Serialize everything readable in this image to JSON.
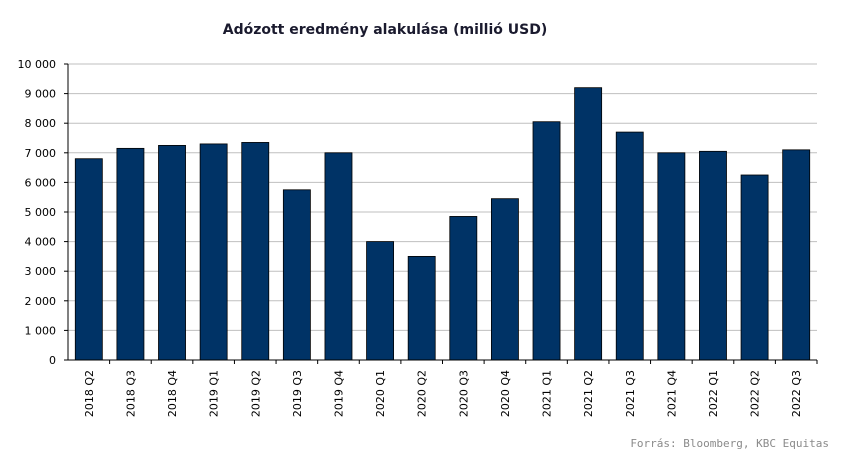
{
  "chart_data": {
    "type": "bar",
    "title": "Adózott eredmény alakulása (millió USD)",
    "categories": [
      "2018 Q2",
      "2018 Q3",
      "2018 Q4",
      "2019 Q1",
      "2019 Q2",
      "2019 Q3",
      "2019 Q4",
      "2020 Q1",
      "2020 Q2",
      "2020 Q3",
      "2020 Q4",
      "2021 Q1",
      "2021 Q2",
      "2021 Q3",
      "2021 Q4",
      "2022 Q1",
      "2022 Q2",
      "2022 Q3"
    ],
    "values": [
      6800,
      7150,
      7250,
      7300,
      7350,
      5750,
      7000,
      4000,
      3500,
      4850,
      5450,
      8050,
      9200,
      7700,
      7000,
      7050,
      6250,
      7100
    ],
    "ylim": [
      0,
      10000
    ],
    "yticks": [
      0,
      1000,
      2000,
      3000,
      4000,
      5000,
      6000,
      7000,
      8000,
      9000,
      10000
    ],
    "ytick_labels": [
      "0",
      "1 000",
      "2 000",
      "3 000",
      "4 000",
      "5 000",
      "6 000",
      "7 000",
      "8 000",
      "9 000",
      "10 000"
    ],
    "xlabel": "",
    "ylabel": "",
    "grid": true,
    "bar_color": "#003366",
    "source": "Forrás: Bloomberg, KBC Equitas"
  }
}
